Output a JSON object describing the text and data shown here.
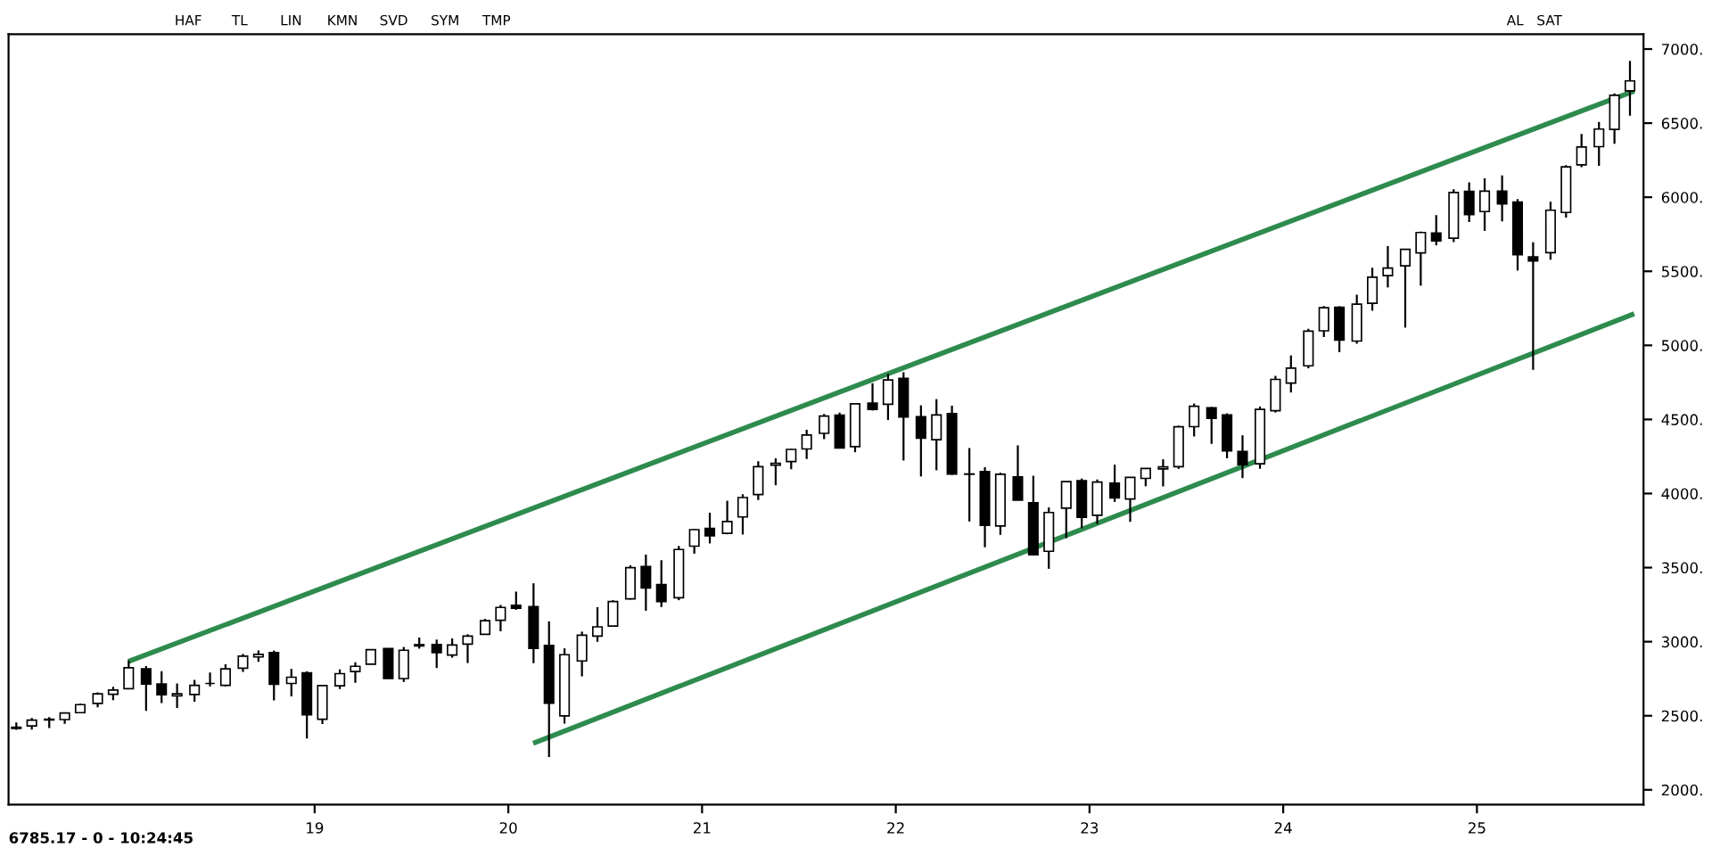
{
  "chart_data": {
    "type": "candlestick",
    "x": [
      2017.46,
      2017.54,
      2017.63,
      2017.71,
      2017.79,
      2017.88,
      2017.96,
      2018.04,
      2018.13,
      2018.21,
      2018.29,
      2018.38,
      2018.46,
      2018.54,
      2018.63,
      2018.71,
      2018.79,
      2018.88,
      2018.96,
      2019.04,
      2019.13,
      2019.21,
      2019.29,
      2019.38,
      2019.46,
      2019.54,
      2019.63,
      2019.71,
      2019.79,
      2019.88,
      2019.96,
      2020.04,
      2020.13,
      2020.21,
      2020.29,
      2020.38,
      2020.46,
      2020.54,
      2020.63,
      2020.71,
      2020.79,
      2020.88,
      2020.96,
      2021.04,
      2021.13,
      2021.21,
      2021.29,
      2021.38,
      2021.46,
      2021.54,
      2021.63,
      2021.71,
      2021.79,
      2021.88,
      2021.96,
      2022.04,
      2022.13,
      2022.21,
      2022.29,
      2022.38,
      2022.46,
      2022.54,
      2022.63,
      2022.71,
      2022.79,
      2022.88,
      2022.96,
      2023.04,
      2023.13,
      2023.21,
      2023.29,
      2023.38,
      2023.46,
      2023.54,
      2023.63,
      2023.71,
      2023.79,
      2023.88,
      2023.96,
      2024.04,
      2024.13,
      2024.21,
      2024.29,
      2024.38,
      2024.46,
      2024.54,
      2024.63,
      2024.71,
      2024.79,
      2024.88,
      2024.96,
      2025.04,
      2025.13,
      2025.21,
      2025.29,
      2025.38,
      2025.46,
      2025.54,
      2025.63,
      2025.71,
      2025.79
    ],
    "ohlc": [
      [
        2415,
        2454,
        2405,
        2423
      ],
      [
        2431,
        2484,
        2407,
        2470
      ],
      [
        2477,
        2490,
        2417,
        2472
      ],
      [
        2474,
        2519,
        2446,
        2519
      ],
      [
        2521,
        2582,
        2520,
        2575
      ],
      [
        2583,
        2657,
        2557,
        2648
      ],
      [
        2645,
        2695,
        2605,
        2674
      ],
      [
        2683,
        2873,
        2683,
        2824
      ],
      [
        2816,
        2835,
        2533,
        2714
      ],
      [
        2715,
        2801,
        2586,
        2641
      ],
      [
        2634,
        2718,
        2553,
        2648
      ],
      [
        2643,
        2742,
        2595,
        2705
      ],
      [
        2718,
        2791,
        2699,
        2718
      ],
      [
        2705,
        2848,
        2698,
        2816
      ],
      [
        2821,
        2917,
        2796,
        2902
      ],
      [
        2897,
        2941,
        2864,
        2914
      ],
      [
        2926,
        2940,
        2604,
        2712
      ],
      [
        2718,
        2816,
        2631,
        2760
      ],
      [
        2790,
        2800,
        2347,
        2507
      ],
      [
        2476,
        2708,
        2444,
        2704
      ],
      [
        2702,
        2813,
        2681,
        2784
      ],
      [
        2798,
        2861,
        2722,
        2834
      ],
      [
        2848,
        2949,
        2848,
        2946
      ],
      [
        2953,
        2955,
        2751,
        2752
      ],
      [
        2751,
        2964,
        2728,
        2942
      ],
      [
        2971,
        3028,
        2953,
        2980
      ],
      [
        2980,
        3014,
        2822,
        2926
      ],
      [
        2910,
        3022,
        2892,
        2977
      ],
      [
        2983,
        3050,
        2856,
        3038
      ],
      [
        3050,
        3154,
        3050,
        3141
      ],
      [
        3144,
        3248,
        3070,
        3231
      ],
      [
        3245,
        3338,
        3215,
        3226
      ],
      [
        3236,
        3394,
        2855,
        2954
      ],
      [
        2974,
        3137,
        2222,
        2585
      ],
      [
        2499,
        2955,
        2447,
        2912
      ],
      [
        2870,
        3068,
        2766,
        3044
      ],
      [
        3038,
        3233,
        2999,
        3100
      ],
      [
        3105,
        3280,
        3101,
        3271
      ],
      [
        3289,
        3515,
        3284,
        3500
      ],
      [
        3508,
        3588,
        3209,
        3363
      ],
      [
        3385,
        3550,
        3234,
        3270
      ],
      [
        3296,
        3646,
        3280,
        3622
      ],
      [
        3645,
        3760,
        3594,
        3756
      ],
      [
        3764,
        3870,
        3663,
        3714
      ],
      [
        3731,
        3951,
        3725,
        3811
      ],
      [
        3842,
        3995,
        3723,
        3973
      ],
      [
        3993,
        4218,
        3956,
        4181
      ],
      [
        4191,
        4238,
        4056,
        4204
      ],
      [
        4216,
        4302,
        4164,
        4298
      ],
      [
        4301,
        4430,
        4233,
        4395
      ],
      [
        4406,
        4537,
        4367,
        4523
      ],
      [
        4529,
        4546,
        4306,
        4308
      ],
      [
        4317,
        4608,
        4279,
        4605
      ],
      [
        4610,
        4744,
        4560,
        4567
      ],
      [
        4602,
        4808,
        4496,
        4766
      ],
      [
        4778,
        4819,
        4223,
        4516
      ],
      [
        4519,
        4595,
        4115,
        4374
      ],
      [
        4363,
        4637,
        4157,
        4530
      ],
      [
        4540,
        4593,
        4125,
        4132
      ],
      [
        4130,
        4307,
        3811,
        4132
      ],
      [
        4149,
        4178,
        3637,
        3785
      ],
      [
        3781,
        4140,
        3721,
        4130
      ],
      [
        4112,
        4325,
        3955,
        3955
      ],
      [
        3937,
        4120,
        3585,
        3586
      ],
      [
        3610,
        3906,
        3492,
        3872
      ],
      [
        3901,
        4081,
        3699,
        4080
      ],
      [
        4087,
        4101,
        3765,
        3840
      ],
      [
        3853,
        4095,
        3794,
        4077
      ],
      [
        4070,
        4195,
        3943,
        3970
      ],
      [
        3963,
        4110,
        3809,
        4109
      ],
      [
        4102,
        4170,
        4049,
        4169
      ],
      [
        4166,
        4231,
        4048,
        4180
      ],
      [
        4181,
        4458,
        4166,
        4450
      ],
      [
        4451,
        4607,
        4385,
        4589
      ],
      [
        4578,
        4584,
        4335,
        4508
      ],
      [
        4530,
        4541,
        4238,
        4288
      ],
      [
        4284,
        4393,
        4104,
        4194
      ],
      [
        4201,
        4587,
        4167,
        4568
      ],
      [
        4559,
        4794,
        4547,
        4770
      ],
      [
        4745,
        4932,
        4682,
        4846
      ],
      [
        4862,
        5112,
        4845,
        5096
      ],
      [
        5098,
        5265,
        5056,
        5254
      ],
      [
        5257,
        5264,
        4954,
        5036
      ],
      [
        5029,
        5342,
        5011,
        5278
      ],
      [
        5284,
        5524,
        5234,
        5460
      ],
      [
        5471,
        5670,
        5391,
        5522
      ],
      [
        5537,
        5652,
        5120,
        5648
      ],
      [
        5624,
        5768,
        5403,
        5762
      ],
      [
        5758,
        5879,
        5675,
        5705
      ],
      [
        5723,
        6053,
        5697,
        6032
      ],
      [
        6040,
        6100,
        5832,
        5882
      ],
      [
        5903,
        6128,
        5773,
        6041
      ],
      [
        6041,
        6147,
        5837,
        5955
      ],
      [
        5968,
        5987,
        5505,
        5612
      ],
      [
        5597,
        5696,
        4835,
        5569
      ],
      [
        5626,
        5969,
        5578,
        5912
      ],
      [
        5897,
        6216,
        5862,
        6205
      ],
      [
        6218,
        6427,
        6202,
        6339
      ],
      [
        6341,
        6508,
        6212,
        6460
      ],
      [
        6458,
        6700,
        6360,
        6688
      ],
      [
        6718,
        6920,
        6550,
        6785
      ]
    ],
    "color": "#000000",
    "series": [
      {
        "type": "line",
        "color": "#2e8b4e",
        "x": [
          2018.05,
          2025.8
        ],
        "values": [
          2872,
          6711
        ]
      },
      {
        "type": "line",
        "color": "#2e8b4e",
        "x": [
          2020.14,
          2025.8
        ],
        "values": [
          2320,
          5207
        ]
      }
    ],
    "xlim": [
      2017.42,
      2025.86
    ],
    "xticks": [
      {
        "value": 2019,
        "label": "19"
      },
      {
        "value": 2020,
        "label": "20"
      },
      {
        "value": 2021,
        "label": "21"
      },
      {
        "value": 2022,
        "label": "22"
      },
      {
        "value": 2023,
        "label": "23"
      },
      {
        "value": 2024,
        "label": "24"
      },
      {
        "value": 2025,
        "label": "25"
      }
    ],
    "ylim": [
      1900,
      7100
    ],
    "yticks": [
      {
        "value": 2000,
        "label": "2000."
      },
      {
        "value": 2500,
        "label": "2500."
      },
      {
        "value": 3000,
        "label": "3000."
      },
      {
        "value": 3500,
        "label": "3500."
      },
      {
        "value": 4000,
        "label": "4000."
      },
      {
        "value": 4500,
        "label": "4500."
      },
      {
        "value": 5000,
        "label": "5000."
      },
      {
        "value": 5500,
        "label": "5500."
      },
      {
        "value": 6000,
        "label": "6000."
      },
      {
        "value": 6500,
        "label": "6500."
      },
      {
        "value": 7000,
        "label": "7000."
      }
    ],
    "annotations": [
      "6785.17 - 0 - 10:24:45",
      "HAF",
      "TL",
      "LIN",
      "KMN",
      "SVD",
      "SYM",
      "TMP",
      "AL",
      "SAT"
    ]
  }
}
